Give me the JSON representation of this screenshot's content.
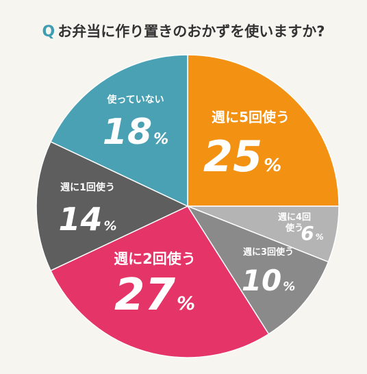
{
  "chart_data": {
    "type": "pie",
    "title": "お弁当に作り置きのおかずを使いますか?",
    "title_prefix": "Q",
    "unit": "%",
    "slices": [
      {
        "label": "週に5回使う",
        "value": 25,
        "color": "#f29112"
      },
      {
        "label": "週に4回使う",
        "value": 6,
        "color": "#b4b4b4"
      },
      {
        "label": "週に3回使う",
        "value": 10,
        "color": "#8a8a8a"
      },
      {
        "label": "週に2回使う",
        "value": 27,
        "color": "#e53467"
      },
      {
        "label": "週に1回使う",
        "value": 14,
        "color": "#5e5e5e"
      },
      {
        "label": "使っていない",
        "value": 18,
        "color": "#4aa1b3"
      }
    ]
  }
}
